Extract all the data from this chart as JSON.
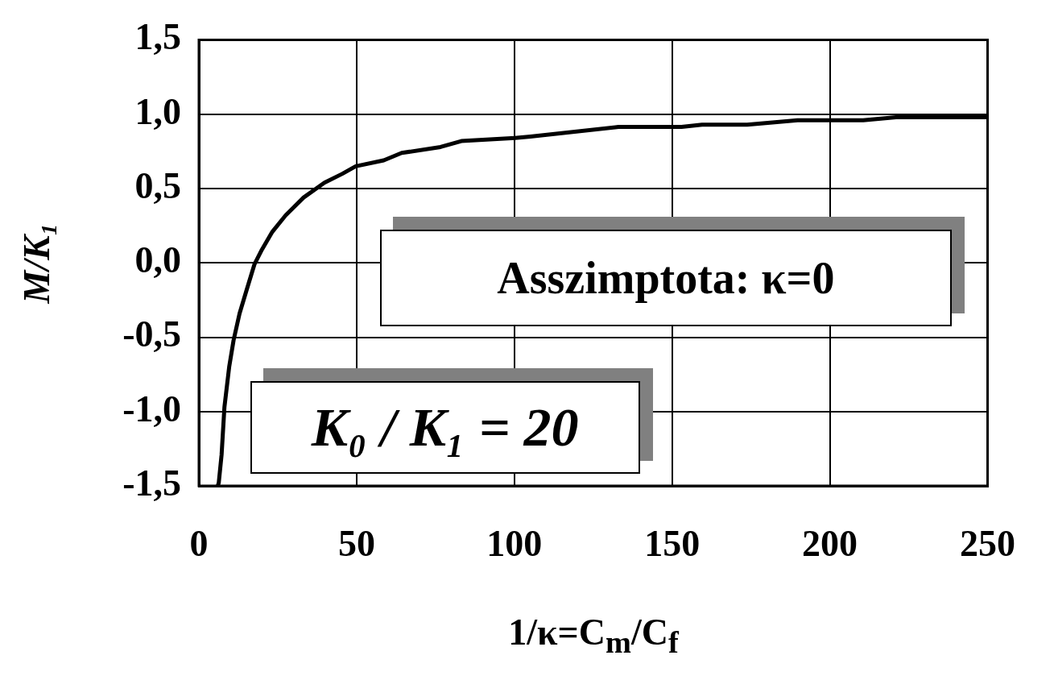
{
  "chart_data": {
    "type": "line",
    "xlabel": "1/κ=C$_{m}$/C$_{f}$",
    "ylabel": "M/K₁",
    "annotations": [
      "Asszimptota: κ=0",
      "K₀ / K₁ = 20"
    ],
    "series": [
      {
        "color": "#000000",
        "x": [
          6,
          6.3,
          7.2,
          8.1,
          9.6,
          11,
          12.9,
          15.3,
          17.6,
          20,
          23.3,
          27.5,
          33.2,
          39.8,
          45.5,
          49.7,
          58.6,
          64.3,
          76.6,
          83.2,
          100.2,
          105.1,
          133,
          153,
          159.5,
          173.8,
          189.8,
          210.6,
          221,
          250
        ],
        "values": [
          -1.5,
          -1.48,
          -1.29,
          -0.97,
          -0.7,
          -0.52,
          -0.34,
          -0.17,
          -0.01,
          0.09,
          0.21,
          0.32,
          0.44,
          0.54,
          0.6,
          0.65,
          0.69,
          0.74,
          0.78,
          0.82,
          0.84,
          0.85,
          0.915,
          0.915,
          0.93,
          0.93,
          0.96,
          0.96,
          0.98,
          0.98
        ]
      }
    ],
    "xlim": [
      0,
      250
    ],
    "xticks": [
      0,
      50,
      100,
      150,
      200,
      250
    ],
    "ylim": [
      -1.5,
      1.5
    ],
    "yticks": [
      {
        "value": -1.5,
        "label": "-1,5"
      },
      {
        "value": -1,
        "label": "-1,0"
      },
      {
        "value": -0.5,
        "label": "-0,5"
      },
      {
        "value": 0,
        "label": "0,0"
      },
      {
        "value": 0.5,
        "label": "0,5"
      },
      {
        "value": 1,
        "label": "1,0"
      },
      {
        "value": 1.5,
        "label": "1,5"
      }
    ],
    "grid": true,
    "legend": false,
    "marker": "none",
    "line_style": "solid"
  }
}
